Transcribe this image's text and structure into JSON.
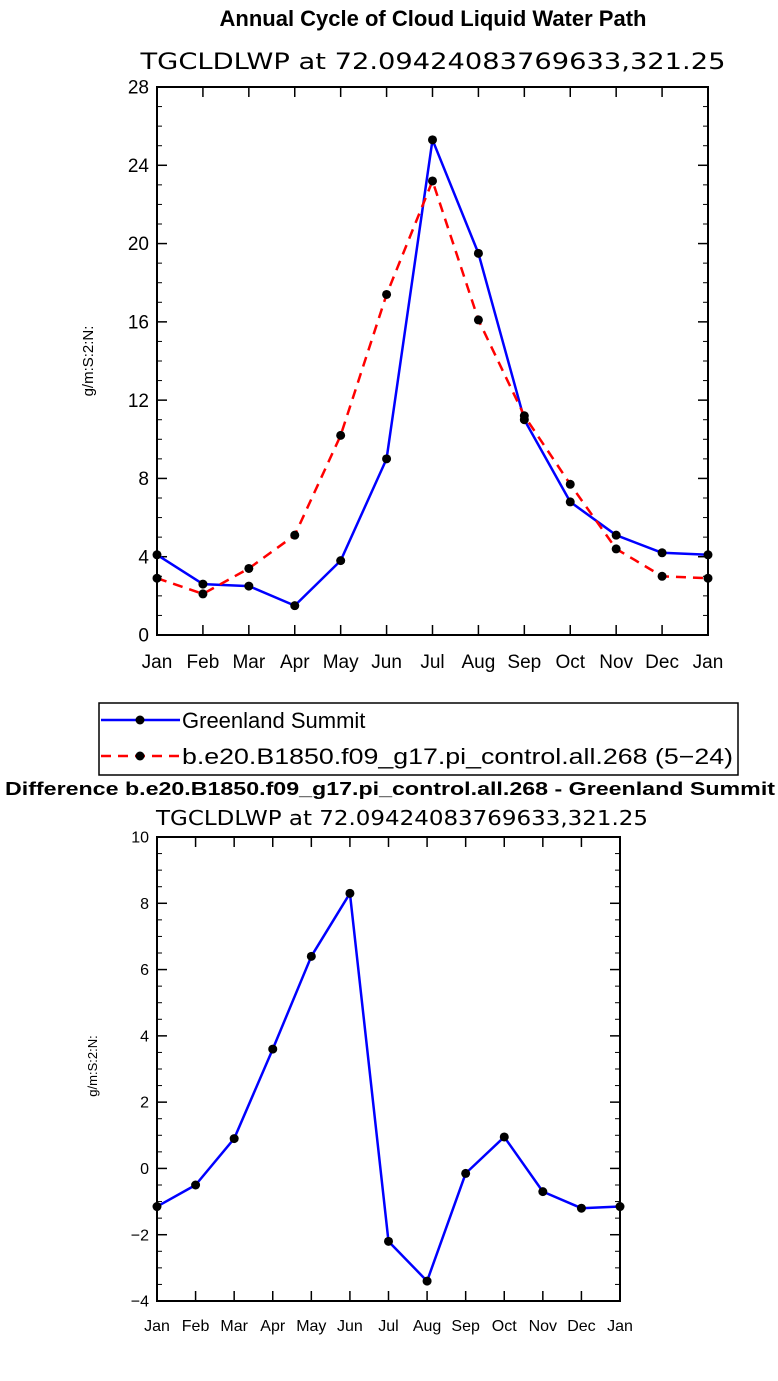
{
  "chart_data": [
    {
      "type": "line",
      "title": "Annual Cycle of Cloud Liquid Water Path",
      "subtitle": "TGCLDLWP  at  72.09424083769633,321.25",
      "ylabel": "g/m:S:2:N:",
      "xlabel": "",
      "categories": [
        "Jan",
        "Feb",
        "Mar",
        "Apr",
        "May",
        "Jun",
        "Jul",
        "Aug",
        "Sep",
        "Oct",
        "Nov",
        "Dec",
        "Jan"
      ],
      "yticks": [
        "0",
        "4",
        "8",
        "12",
        "16",
        "20",
        "24",
        "28"
      ],
      "ylim": [
        0,
        28
      ],
      "grid": false,
      "legend_placement": "bottom",
      "series": [
        {
          "name": "Greenland Summit",
          "color": "#0000ff",
          "style": "solid",
          "values": [
            4.1,
            2.6,
            2.5,
            1.5,
            3.8,
            9.0,
            25.3,
            19.5,
            11.0,
            6.8,
            5.1,
            4.2,
            4.1
          ]
        },
        {
          "name": "b.e20.B1850.f09_g17.pi_control.all.268 (5−24)",
          "color": "#ff0000",
          "style": "dashed",
          "values": [
            2.9,
            2.1,
            3.4,
            5.1,
            10.2,
            17.4,
            23.2,
            16.1,
            11.2,
            7.7,
            4.4,
            3.0,
            2.9
          ]
        }
      ]
    },
    {
      "type": "line",
      "title": "Difference b.e20.B1850.f09_g17.pi_control.all.268 - Greenland Summit",
      "subtitle": "TGCLDLWP  at  72.09424083769633,321.25",
      "ylabel": "g/m:S:2:N:",
      "xlabel": "",
      "categories": [
        "Jan",
        "Feb",
        "Mar",
        "Apr",
        "May",
        "Jun",
        "Jul",
        "Aug",
        "Sep",
        "Oct",
        "Nov",
        "Dec",
        "Jan"
      ],
      "yticks": [
        "−4",
        "−2",
        "0",
        "2",
        "4",
        "6",
        "8",
        "10"
      ],
      "ylim": [
        -4,
        10
      ],
      "grid": false,
      "series": [
        {
          "color": "#0000ff",
          "style": "solid",
          "values": [
            -1.15,
            -0.5,
            0.9,
            3.6,
            6.4,
            8.3,
            -2.2,
            -3.4,
            -0.15,
            0.95,
            -0.7,
            -1.2,
            -1.15
          ]
        }
      ]
    }
  ]
}
